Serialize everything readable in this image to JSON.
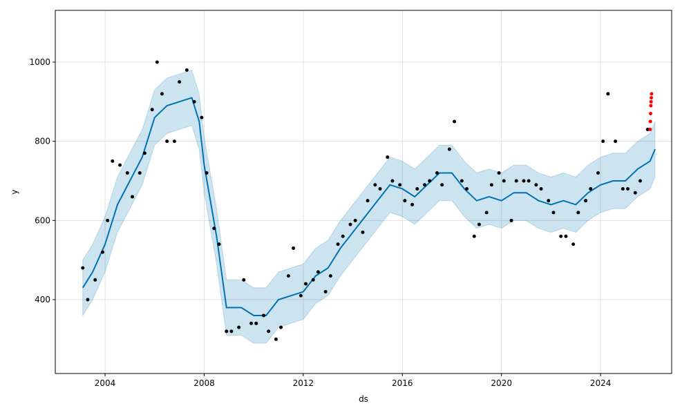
{
  "chart_data": {
    "type": "forecast",
    "xlabel": "ds",
    "ylabel": "y",
    "xlim": [
      2001.99,
      2026.87
    ],
    "ylim": [
      213.4,
      1130.8
    ],
    "xticks": [
      2004,
      2008,
      2012,
      2016,
      2020,
      2024
    ],
    "yticks": [
      400,
      600,
      800,
      1000
    ],
    "grid": true,
    "series": [
      {
        "style": "band",
        "color": "#0072b2",
        "x": [
          2003.1,
          2003.5,
          2004.0,
          2004.5,
          2005.0,
          2005.5,
          2006.0,
          2006.5,
          2007.0,
          2007.5,
          2007.8,
          2008.0,
          2008.5,
          2008.9,
          2009.5,
          2010.0,
          2010.5,
          2011.0,
          2011.5,
          2012.0,
          2012.5,
          2013.0,
          2013.5,
          2014.0,
          2014.5,
          2015.0,
          2015.5,
          2016.0,
          2016.5,
          2017.0,
          2017.5,
          2018.0,
          2018.5,
          2019.0,
          2019.5,
          2020.0,
          2020.5,
          2021.0,
          2021.5,
          2022.0,
          2022.5,
          2023.0,
          2023.5,
          2024.0,
          2024.5,
          2025.0,
          2025.5,
          2026.0,
          2026.2
        ],
        "upper": [
          500,
          540,
          610,
          710,
          770,
          830,
          930,
          960,
          970,
          980,
          920,
          810,
          630,
          450,
          450,
          430,
          430,
          470,
          480,
          490,
          530,
          550,
          600,
          640,
          680,
          720,
          760,
          750,
          730,
          760,
          790,
          790,
          750,
          720,
          730,
          720,
          740,
          740,
          720,
          710,
          720,
          710,
          740,
          760,
          770,
          770,
          800,
          820,
          850
        ],
        "lower": [
          360,
          400,
          470,
          570,
          630,
          690,
          790,
          820,
          830,
          840,
          780,
          670,
          490,
          310,
          310,
          290,
          290,
          330,
          340,
          350,
          390,
          410,
          460,
          500,
          540,
          580,
          620,
          610,
          590,
          620,
          650,
          650,
          610,
          580,
          590,
          580,
          600,
          600,
          580,
          570,
          580,
          570,
          600,
          620,
          630,
          630,
          660,
          680,
          710
        ]
      },
      {
        "style": "line",
        "color": "#0072b2",
        "x": [
          2003.1,
          2003.5,
          2004.0,
          2004.5,
          2005.0,
          2005.5,
          2006.0,
          2006.5,
          2007.0,
          2007.5,
          2007.8,
          2008.0,
          2008.5,
          2008.9,
          2009.5,
          2010.0,
          2010.5,
          2011.0,
          2011.5,
          2012.0,
          2012.5,
          2013.0,
          2013.5,
          2014.0,
          2014.5,
          2015.0,
          2015.5,
          2016.0,
          2016.5,
          2017.0,
          2017.5,
          2018.0,
          2018.5,
          2019.0,
          2019.5,
          2020.0,
          2020.5,
          2021.0,
          2021.5,
          2022.0,
          2022.5,
          2023.0,
          2023.5,
          2024.0,
          2024.5,
          2025.0,
          2025.5,
          2026.0,
          2026.2
        ],
        "values": [
          430,
          470,
          540,
          640,
          700,
          760,
          860,
          890,
          900,
          910,
          850,
          740,
          560,
          380,
          380,
          360,
          360,
          400,
          410,
          420,
          460,
          480,
          530,
          570,
          610,
          650,
          690,
          680,
          660,
          690,
          720,
          720,
          680,
          650,
          660,
          650,
          670,
          670,
          650,
          640,
          650,
          640,
          670,
          690,
          700,
          700,
          730,
          750,
          780
        ]
      },
      {
        "style": "points",
        "color": "#000000",
        "x": [
          2003.1,
          2003.3,
          2003.6,
          2003.9,
          2004.1,
          2004.3,
          2004.6,
          2004.9,
          2005.1,
          2005.4,
          2005.6,
          2005.9,
          2006.1,
          2006.3,
          2006.5,
          2006.8,
          2007.0,
          2007.3,
          2007.6,
          2007.9,
          2008.1,
          2008.4,
          2008.6,
          2008.9,
          2009.1,
          2009.4,
          2009.6,
          2009.9,
          2010.1,
          2010.4,
          2010.6,
          2010.9,
          2011.1,
          2011.4,
          2011.6,
          2011.9,
          2012.1,
          2012.4,
          2012.6,
          2012.9,
          2013.1,
          2013.4,
          2013.6,
          2013.9,
          2014.1,
          2014.4,
          2014.6,
          2014.9,
          2015.1,
          2015.4,
          2015.6,
          2015.9,
          2016.1,
          2016.4,
          2016.6,
          2016.9,
          2017.1,
          2017.4,
          2017.6,
          2017.9,
          2018.1,
          2018.4,
          2018.6,
          2018.9,
          2019.1,
          2019.4,
          2019.6,
          2019.9,
          2020.1,
          2020.4,
          2020.6,
          2020.9,
          2021.1,
          2021.4,
          2021.6,
          2021.9,
          2022.1,
          2022.4,
          2022.6,
          2022.9,
          2023.1,
          2023.4,
          2023.6,
          2023.9,
          2024.1,
          2024.3,
          2024.6,
          2024.9,
          2025.1,
          2025.4,
          2025.6,
          2025.9
        ],
        "values": [
          480,
          400,
          450,
          520,
          600,
          750,
          740,
          720,
          660,
          720,
          770,
          880,
          1000,
          920,
          800,
          800,
          950,
          980,
          900,
          860,
          720,
          580,
          540,
          320,
          320,
          330,
          450,
          340,
          340,
          360,
          320,
          300,
          330,
          460,
          530,
          410,
          440,
          450,
          470,
          420,
          460,
          540,
          560,
          590,
          600,
          570,
          650,
          690,
          680,
          760,
          700,
          690,
          650,
          640,
          680,
          690,
          700,
          720,
          690,
          780,
          850,
          700,
          680,
          560,
          590,
          620,
          690,
          720,
          700,
          600,
          700,
          700,
          700,
          690,
          680,
          650,
          620,
          560,
          560,
          540,
          620,
          650,
          680,
          720,
          800,
          920,
          800,
          680,
          680,
          670,
          700,
          830
        ]
      },
      {
        "style": "points",
        "color": "#ff0000",
        "x": [
          2026.0,
          2026.01,
          2026.02,
          2026.03,
          2026.04,
          2026.05,
          2026.06
        ],
        "values": [
          830,
          850,
          870,
          890,
          900,
          910,
          920
        ]
      }
    ]
  }
}
